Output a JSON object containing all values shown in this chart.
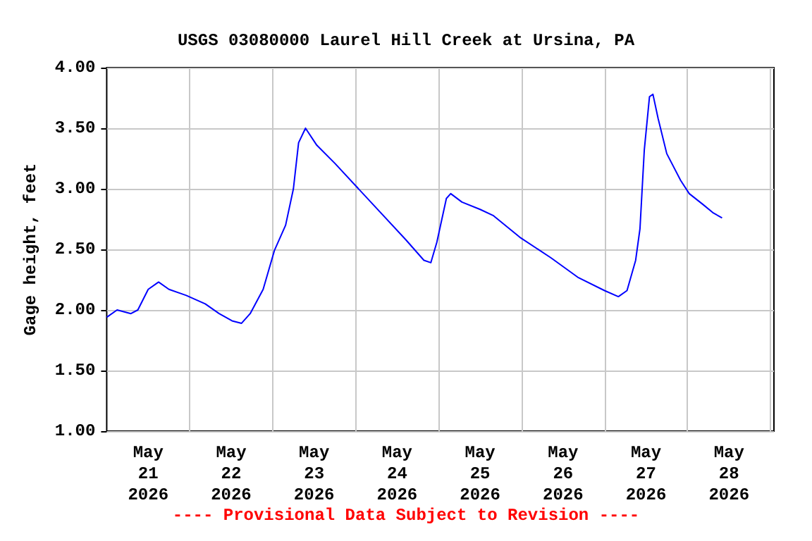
{
  "chart_data": {
    "type": "line",
    "title": "USGS 03080000 Laurel Hill Creek at Ursina, PA",
    "ylabel": "Gage height, feet",
    "annotations": [
      "---- Provisional Data Subject to Revision ----"
    ],
    "x": [
      "2026-05-21T00:00",
      "2026-05-21T03:00",
      "2026-05-21T07:00",
      "2026-05-21T09:00",
      "2026-05-21T12:00",
      "2026-05-21T15:00",
      "2026-05-21T18:00",
      "2026-05-21T23:00",
      "2026-05-22T04:30",
      "2026-05-22T08:30",
      "2026-05-22T12:15",
      "2026-05-22T15:00",
      "2026-05-22T17:30",
      "2026-05-22T21:15",
      "2026-05-23T00:30",
      "2026-05-23T03:45",
      "2026-05-23T06:00",
      "2026-05-23T07:30",
      "2026-05-23T09:30",
      "2026-05-23T12:45",
      "2026-05-23T18:00",
      "2026-05-24T00:30",
      "2026-05-24T07:00",
      "2026-05-24T14:30",
      "2026-05-24T19:45",
      "2026-05-24T21:45",
      "2026-05-24T23:30",
      "2026-05-25T02:15",
      "2026-05-25T03:30",
      "2026-05-25T06:45",
      "2026-05-25T12:00",
      "2026-05-25T15:45",
      "2026-05-25T23:30",
      "2026-05-26T08:30",
      "2026-05-26T16:15",
      "2026-05-27T00:00",
      "2026-05-27T04:00",
      "2026-05-27T06:30",
      "2026-05-27T09:00",
      "2026-05-27T10:15",
      "2026-05-27T11:30",
      "2026-05-27T13:00",
      "2026-05-27T14:00",
      "2026-05-27T15:30",
      "2026-05-27T18:00",
      "2026-05-27T22:00",
      "2026-05-28T00:30",
      "2026-05-28T04:30",
      "2026-05-28T07:30",
      "2026-05-28T10:00"
    ],
    "series": [
      {
        "color": "#0000ff",
        "values": [
          1.94,
          2.0,
          1.97,
          2.0,
          2.17,
          2.23,
          2.17,
          2.12,
          2.05,
          1.97,
          1.91,
          1.89,
          1.97,
          2.17,
          2.49,
          2.7,
          3.0,
          3.38,
          3.5,
          3.36,
          3.21,
          3.01,
          2.81,
          2.58,
          2.41,
          2.39,
          2.56,
          2.92,
          2.96,
          2.89,
          2.83,
          2.78,
          2.6,
          2.43,
          2.27,
          2.16,
          2.11,
          2.16,
          2.41,
          2.67,
          3.32,
          3.76,
          3.78,
          3.58,
          3.29,
          3.07,
          2.96,
          2.87,
          2.8,
          2.76
        ]
      }
    ],
    "xlim": [
      "2026-05-21T00:00",
      "2026-05-29T01:00"
    ],
    "xticks": [
      {
        "value": "2026-05-21T12:00",
        "label": "May\n21\n2026"
      },
      {
        "value": "2026-05-22T12:00",
        "label": "May\n22\n2026"
      },
      {
        "value": "2026-05-23T12:00",
        "label": "May\n23\n2026"
      },
      {
        "value": "2026-05-24T12:00",
        "label": "May\n24\n2026"
      },
      {
        "value": "2026-05-25T12:00",
        "label": "May\n25\n2026"
      },
      {
        "value": "2026-05-26T12:00",
        "label": "May\n26\n2026"
      },
      {
        "value": "2026-05-27T12:00",
        "label": "May\n27\n2026"
      },
      {
        "value": "2026-05-28T12:00",
        "label": "May\n28\n2026"
      },
      {
        "value": "2026-05-22T00:00",
        "label": null
      },
      {
        "value": "2026-05-23T00:00",
        "label": null
      },
      {
        "value": "2026-05-24T00:00",
        "label": null
      },
      {
        "value": "2026-05-25T00:00",
        "label": null
      },
      {
        "value": "2026-05-26T00:00",
        "label": null
      },
      {
        "value": "2026-05-27T00:00",
        "label": null
      },
      {
        "value": "2026-05-28T00:00",
        "label": null
      },
      {
        "value": "2026-05-29T00:00",
        "label": null
      }
    ],
    "ylim": [
      1.0,
      4.0
    ],
    "yticks": [
      {
        "value": 1.0,
        "label": "1.00"
      },
      {
        "value": 1.5,
        "label": "1.50"
      },
      {
        "value": 2.0,
        "label": "2.00"
      },
      {
        "value": 2.5,
        "label": "2.50"
      },
      {
        "value": 3.0,
        "label": "3.00"
      },
      {
        "value": 3.5,
        "label": "3.50"
      },
      {
        "value": 4.0,
        "label": "4.00"
      }
    ],
    "grid": true,
    "marker": "none",
    "line_style": "solid"
  }
}
